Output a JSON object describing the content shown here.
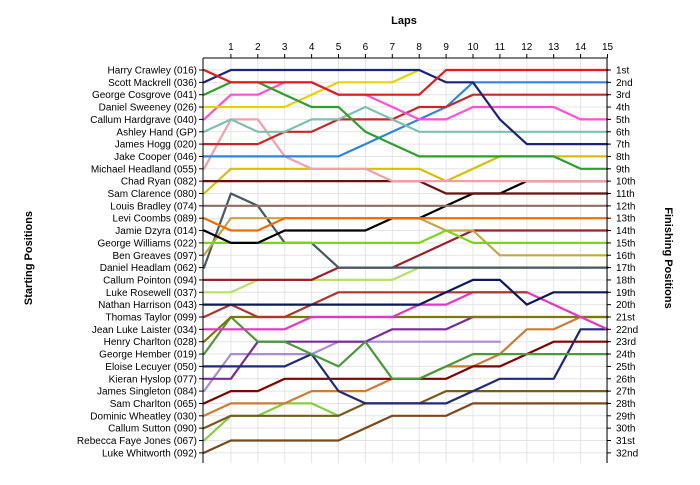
{
  "chart_data": {
    "type": "line",
    "title": "",
    "xlabel": "Laps",
    "ylabel_left": "Starting Positions",
    "ylabel_right": "Finishing Positions",
    "x": [
      0,
      1,
      2,
      3,
      4,
      5,
      6,
      7,
      8,
      9,
      10,
      11,
      12,
      13,
      14,
      15
    ],
    "x_tick_labels": [
      "1",
      "2",
      "3",
      "4",
      "5",
      "6",
      "7",
      "8",
      "9",
      "10",
      "11",
      "12",
      "13",
      "14",
      "15"
    ],
    "xlim": [
      0,
      15
    ],
    "ylim": [
      1,
      32
    ],
    "y_inverted": true,
    "grid": true,
    "finishing_labels": [
      "1st",
      "2nd",
      "3rd",
      "4th",
      "5th",
      "6th",
      "7th",
      "8th",
      "9th",
      "10th",
      "11th",
      "12th",
      "13th",
      "14th",
      "15th",
      "16th",
      "17th",
      "18th",
      "19th",
      "20th",
      "21st",
      "22nd",
      "23rd",
      "24th",
      "25th",
      "26th",
      "27th",
      "28th",
      "29th",
      "30th",
      "31st",
      "32nd"
    ],
    "series": [
      {
        "name": "Harry Crawley (016)",
        "color": "#e41a1c",
        "values": [
          1,
          2,
          2,
          2,
          2,
          3,
          3,
          3,
          3,
          1,
          1,
          1,
          1,
          1,
          1,
          1
        ]
      },
      {
        "name": "Scott Mackrell (036)",
        "color": "#1a237e",
        "values": [
          2,
          1,
          1,
          1,
          1,
          1,
          1,
          1,
          1,
          2,
          2,
          5,
          7,
          7,
          7,
          7
        ]
      },
      {
        "name": "George Cosgrove (041)",
        "color": "#2ca02c",
        "values": [
          3,
          2,
          2,
          3,
          4,
          4,
          6,
          7,
          8,
          8,
          8,
          8,
          8,
          8,
          9,
          9
        ]
      },
      {
        "name": "Daniel Sweeney (026)",
        "color": "#e6d200",
        "values": [
          4,
          4,
          4,
          4,
          3,
          2,
          2,
          2,
          1,
          null,
          null,
          null,
          null,
          null,
          null,
          null
        ]
      },
      {
        "name": "Callum Hardgrave (040)",
        "color": "#ff4fd8",
        "values": [
          5,
          3,
          3,
          2,
          2,
          3,
          3,
          4,
          5,
          5,
          4,
          4,
          4,
          4,
          5,
          5
        ]
      },
      {
        "name": "Ashley Hand (GP)",
        "color": "#7fbfb0",
        "values": [
          6,
          5,
          6,
          6,
          5,
          5,
          4,
          5,
          6,
          6,
          6,
          6,
          6,
          6,
          6,
          6
        ]
      },
      {
        "name": "James Hogg (020)",
        "color": "#c62828",
        "values": [
          7,
          7,
          7,
          6,
          6,
          5,
          5,
          5,
          4,
          4,
          3,
          3,
          3,
          3,
          3,
          3
        ]
      },
      {
        "name": "Jake Cooper (046)",
        "color": "#2e86de",
        "values": [
          8,
          8,
          8,
          8,
          8,
          8,
          7,
          6,
          5,
          4,
          2,
          2,
          2,
          2,
          2,
          2
        ]
      },
      {
        "name": "Michael Headland (055)",
        "color": "#f2a0a8",
        "values": [
          9,
          5,
          5,
          8,
          9,
          9,
          9,
          10,
          10,
          10,
          10,
          10,
          10,
          10,
          10,
          10
        ]
      },
      {
        "name": "Chad Ryan (082)",
        "color": "#6b0f0f",
        "values": [
          10,
          10,
          10,
          10,
          10,
          10,
          10,
          10,
          10,
          11,
          11,
          11,
          11,
          11,
          11,
          11
        ]
      },
      {
        "name": "Sam Clarence (080)",
        "color": "#d4c200",
        "values": [
          11,
          9,
          9,
          9,
          9,
          9,
          9,
          9,
          9,
          10,
          9,
          8,
          8,
          8,
          8,
          8
        ]
      },
      {
        "name": "Louis Bradley (074)",
        "color": "#8d6e63",
        "values": [
          12,
          12,
          12,
          12,
          12,
          12,
          12,
          12,
          12,
          12,
          12,
          12,
          12,
          12,
          12,
          12
        ]
      },
      {
        "name": "Levi Coombs (089)",
        "color": "#ef6c00",
        "values": [
          13,
          14,
          14,
          13,
          13,
          13,
          13,
          13,
          13,
          13,
          13,
          13,
          13,
          13,
          13,
          13
        ]
      },
      {
        "name": "Jamie Dzyra (014)",
        "color": "#000000",
        "values": [
          14,
          15,
          15,
          14,
          14,
          14,
          14,
          13,
          13,
          12,
          11,
          11,
          10,
          10,
          10,
          10
        ]
      },
      {
        "name": "George Williams (022)",
        "color": "#7cd617",
        "values": [
          15,
          15,
          15,
          15,
          15,
          15,
          15,
          15,
          15,
          14,
          15,
          15,
          15,
          15,
          15,
          15
        ]
      },
      {
        "name": "Ben Greaves (097)",
        "color": "#c7a542",
        "values": [
          16,
          13,
          13,
          13,
          13,
          13,
          13,
          13,
          13,
          14,
          14,
          16,
          16,
          16,
          16,
          16
        ]
      },
      {
        "name": "Daniel Headlam (062)",
        "color": "#455a64",
        "values": [
          17,
          11,
          12,
          15,
          15,
          17,
          17,
          17,
          17,
          17,
          17,
          17,
          17,
          17,
          17,
          17
        ]
      },
      {
        "name": "Callum Pointon (094)",
        "color": "#9c1f2a",
        "values": [
          18,
          18,
          18,
          18,
          18,
          17,
          17,
          17,
          16,
          15,
          14,
          14,
          14,
          14,
          14,
          14
        ]
      },
      {
        "name": "Luke Rosewell (037)",
        "color": "#b6e066",
        "values": [
          19,
          19,
          18,
          18,
          18,
          18,
          18,
          18,
          17,
          17,
          17,
          17,
          17,
          17,
          17,
          17
        ]
      },
      {
        "name": "Nathan Harrison (043)",
        "color": "#0a1a5c",
        "values": [
          20,
          20,
          20,
          20,
          20,
          20,
          20,
          20,
          20,
          19,
          18,
          18,
          20,
          19,
          19,
          19
        ]
      },
      {
        "name": "Thomas Taylor (099)",
        "color": "#b0352b",
        "values": [
          21,
          20,
          21,
          21,
          20,
          19,
          19,
          19,
          19,
          19,
          19,
          19,
          19,
          null,
          null,
          null
        ]
      },
      {
        "name": "Jean Luke Laister (034)",
        "color": "#e535c6",
        "values": [
          22,
          22,
          22,
          22,
          21,
          21,
          21,
          21,
          20,
          20,
          19,
          19,
          19,
          20,
          21,
          22
        ]
      },
      {
        "name": "Henry Charlton (028)",
        "color": "#7a7a00",
        "values": [
          23,
          21,
          21,
          21,
          21,
          21,
          21,
          21,
          21,
          21,
          21,
          21,
          21,
          21,
          21,
          21
        ]
      },
      {
        "name": "George Hember (019)",
        "color": "#4a9a3a",
        "values": [
          24,
          21,
          23,
          23,
          24,
          25,
          23,
          26,
          26,
          25,
          24,
          24,
          24,
          24,
          24,
          24
        ]
      },
      {
        "name": "Eloise Lecuyer (050)",
        "color": "#1f2a7a",
        "values": [
          25,
          25,
          25,
          25,
          24,
          27,
          28,
          28,
          28,
          28,
          27,
          26,
          26,
          26,
          22,
          22
        ]
      },
      {
        "name": "Kieran Hyslop (077)",
        "color": "#7a2a9a",
        "values": [
          26,
          26,
          23,
          23,
          23,
          23,
          23,
          22,
          22,
          22,
          21,
          21,
          null,
          null,
          null,
          null
        ]
      },
      {
        "name": "James Singleton (084)",
        "color": "#a98bd6",
        "values": [
          27,
          24,
          24,
          24,
          24,
          23,
          23,
          23,
          23,
          23,
          23,
          23,
          null,
          null,
          null,
          null
        ]
      },
      {
        "name": "Sam Charlton (065)",
        "color": "#800000",
        "values": [
          28,
          27,
          27,
          26,
          26,
          26,
          26,
          26,
          26,
          26,
          25,
          25,
          24,
          23,
          23,
          23
        ]
      },
      {
        "name": "Dominic Wheatley (030)",
        "color": "#cc7c33",
        "values": [
          29,
          28,
          28,
          28,
          27,
          27,
          27,
          26,
          26,
          25,
          25,
          24,
          22,
          22,
          21,
          21
        ]
      },
      {
        "name": "Callum Sutton (090)",
        "color": "#7a5a1a",
        "values": [
          30,
          29,
          29,
          29,
          29,
          29,
          28,
          28,
          28,
          27,
          27,
          27,
          27,
          27,
          27,
          27
        ]
      },
      {
        "name": "Rebecca Faye Jones (067)",
        "color": "#80d040",
        "values": [
          31,
          29,
          29,
          28,
          28,
          29,
          null,
          null,
          null,
          null,
          null,
          null,
          null,
          null,
          null,
          null
        ]
      },
      {
        "name": "Luke Whitworth (092)",
        "color": "#7b4a1a",
        "values": [
          32,
          31,
          31,
          31,
          31,
          31,
          30,
          29,
          29,
          29,
          28,
          28,
          28,
          28,
          28,
          28
        ]
      }
    ]
  }
}
